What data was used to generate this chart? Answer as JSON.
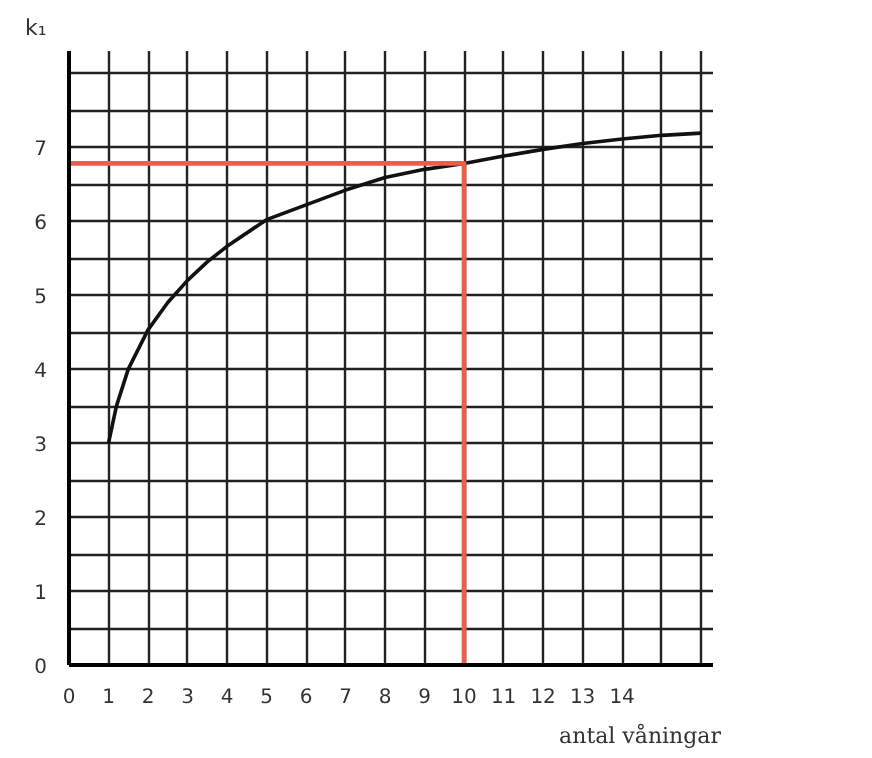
{
  "chart_data": {
    "type": "line",
    "ylabel": "k₁",
    "xlabel": "antal våningar",
    "xlim": [
      0,
      16.3
    ],
    "ylim": [
      0,
      8.3
    ],
    "xticks": [
      0,
      1,
      2,
      3,
      4,
      5,
      6,
      7,
      8,
      9,
      10,
      11,
      12,
      13,
      14,
      {
        "value": 15,
        "label": null
      },
      {
        "value": 16,
        "label": null
      }
    ],
    "yticks": [
      0,
      {
        "value": 0.5,
        "label": null
      },
      1,
      {
        "value": 1.5,
        "label": null
      },
      2,
      {
        "value": 2.5,
        "label": null
      },
      3,
      {
        "value": 3.5,
        "label": null
      },
      4,
      {
        "value": 4.5,
        "label": null
      },
      5,
      {
        "value": 5.5,
        "label": null
      },
      6,
      {
        "value": 6.5,
        "label": null
      },
      7,
      {
        "value": 7.5,
        "label": null
      },
      {
        "value": 8,
        "label": null
      }
    ],
    "grid": true,
    "marker": "none",
    "line_style": "solid",
    "series": [
      {
        "color": "#111111",
        "x": [
          1,
          1.2,
          1.5,
          2,
          2.5,
          3,
          3.5,
          4,
          5,
          6,
          7,
          8,
          9,
          10,
          11,
          12,
          13,
          14,
          15,
          16
        ],
        "values": [
          3.0,
          3.5,
          4.0,
          4.53,
          4.9,
          5.2,
          5.45,
          5.66,
          6.02,
          6.22,
          6.42,
          6.59,
          6.7,
          6.78,
          6.88,
          6.97,
          7.05,
          7.11,
          7.16,
          7.19
        ]
      },
      {
        "color": "#e8604c",
        "x": [
          0,
          10,
          10
        ],
        "values": [
          6.78,
          6.78,
          0
        ]
      }
    ]
  }
}
